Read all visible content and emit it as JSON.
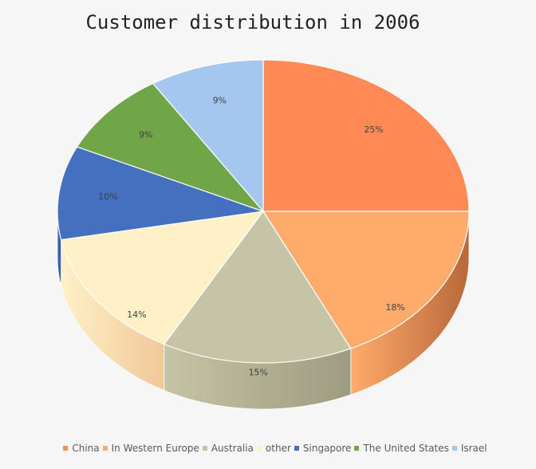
{
  "chart_data": {
    "type": "pie",
    "title": "Customer distribution in 2006",
    "series": [
      {
        "name": "China",
        "value": 25,
        "label": "25%",
        "color": "#FF8A55",
        "side": "#c4643a"
      },
      {
        "name": "In Western Europe",
        "value": 18,
        "label": "18%",
        "color": "#FFAB6C",
        "side": "#b8683a"
      },
      {
        "name": "Australia",
        "value": 15,
        "label": "15%",
        "color": "#C6C4A6",
        "side": "#9e9c80"
      },
      {
        "name": "other",
        "value": 14,
        "label": "14%",
        "color": "#FFF0C8",
        "side": "#f0c898"
      },
      {
        "name": "Singapore",
        "value": 10,
        "label": "10%",
        "color": "#4470BF",
        "side": "#2f528f"
      },
      {
        "name": "The United States",
        "value": 9,
        "label": "9%",
        "color": "#70A548",
        "side": "#4f7a30"
      },
      {
        "name": "Israel",
        "value": 9,
        "label": "9%",
        "color": "#A5C6EF",
        "side": "#7a9cc8"
      }
    ],
    "legend_position": "bottom",
    "style": "3d"
  }
}
